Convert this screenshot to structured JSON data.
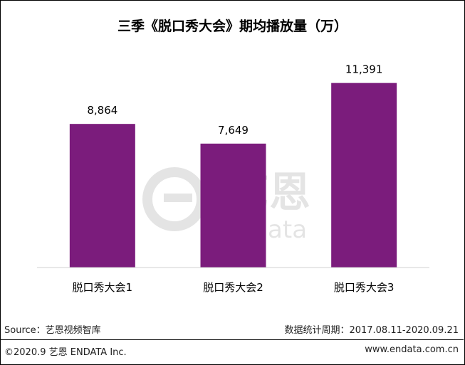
{
  "title": "三季《脱口秀大会》期均播放量（万）",
  "chart_data": {
    "type": "bar",
    "categories": [
      "脱口秀大会1",
      "脱口秀大会2",
      "脱口秀大会3"
    ],
    "values": [
      8864,
      7649,
      11391
    ],
    "value_labels": [
      "8,864",
      "7,649",
      "11,391"
    ],
    "ylim": [
      0,
      13000
    ],
    "grid": false,
    "bar_color": "#7B1C7C"
  },
  "watermark": {
    "brand_cn": "艺恩",
    "brand_en": "endata"
  },
  "footer": {
    "source": "Source：艺恩视频智库",
    "period": "数据统计周期：2017.08.11-2020.09.21",
    "copyright": "©2020.9 艺恩 ENDATA Inc.",
    "website": "www.endata.com.cn"
  }
}
